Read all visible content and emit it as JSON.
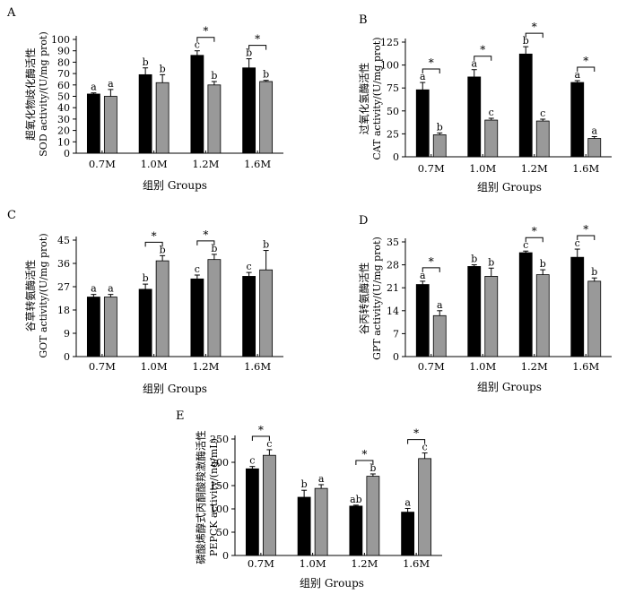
{
  "figure": {
    "x_axis_title": "组别  Groups",
    "colors": {
      "black_bar": "#000000",
      "gray_bar": "#999999"
    }
  },
  "chart_data": [
    {
      "panel": "A",
      "type": "bar",
      "ylabel_cn": "超氧化物歧化酶活性",
      "ylabel_en": "SOD activity/(U/mg prot)",
      "xlabel": "组别  Groups",
      "categories": [
        "0.7M",
        "1.0M",
        "1.2M",
        "1.6M"
      ],
      "ylim": [
        0,
        100
      ],
      "yticks": [
        0,
        10,
        20,
        30,
        40,
        50,
        60,
        70,
        80,
        90,
        100
      ],
      "series": [
        {
          "values": [
            52,
            69,
            86,
            75
          ],
          "errors": [
            1,
            6,
            4,
            8
          ],
          "letters": [
            "a",
            "b",
            "c",
            "b"
          ]
        },
        {
          "values": [
            50,
            62,
            60,
            63
          ],
          "errors": [
            6,
            7,
            3,
            1
          ],
          "letters": [
            "a",
            "b",
            "b",
            "b"
          ]
        }
      ],
      "significance": [
        {
          "category": "1.2M",
          "label": "*"
        },
        {
          "category": "1.6M",
          "label": "*"
        }
      ]
    },
    {
      "panel": "B",
      "type": "bar",
      "ylabel_cn": "过氧化氢酶活性",
      "ylabel_en": "CAT activity/(U/mg prot)",
      "xlabel": "组别  Groups",
      "categories": [
        "0.7M",
        "1.0M",
        "1.2M",
        "1.6M"
      ],
      "ylim": [
        0,
        125
      ],
      "yticks": [
        0,
        25,
        50,
        75,
        100,
        125
      ],
      "series": [
        {
          "values": [
            73,
            87,
            112,
            81
          ],
          "errors": [
            8,
            8,
            8,
            2
          ],
          "letters": [
            "a",
            "a",
            "b",
            "a"
          ]
        },
        {
          "values": [
            24,
            40,
            39,
            20
          ],
          "errors": [
            2,
            2,
            2,
            2
          ],
          "letters": [
            "b",
            "c",
            "c",
            "a"
          ]
        }
      ],
      "significance": [
        {
          "category": "0.7M",
          "label": "*"
        },
        {
          "category": "1.0M",
          "label": "*"
        },
        {
          "category": "1.2M",
          "label": "*"
        },
        {
          "category": "1.6M",
          "label": "*"
        }
      ]
    },
    {
      "panel": "C",
      "type": "bar",
      "ylabel_cn": "谷草转氨酶活性",
      "ylabel_en": "GOT activity/(U/mg prot)",
      "xlabel": "组别  Groups",
      "categories": [
        "0.7M",
        "1.0M",
        "1.2M",
        "1.6M"
      ],
      "ylim": [
        0,
        45
      ],
      "yticks": [
        0,
        9,
        18,
        27,
        36,
        45
      ],
      "series": [
        {
          "values": [
            23,
            26,
            30,
            31
          ],
          "errors": [
            1,
            2,
            1.5,
            1.5
          ],
          "letters": [
            "a",
            "b",
            "c",
            "c"
          ]
        },
        {
          "values": [
            23,
            37,
            37.5,
            33.5
          ],
          "errors": [
            1,
            2,
            2,
            7.5
          ],
          "letters": [
            "a",
            "b",
            "b",
            "b"
          ]
        }
      ],
      "significance": [
        {
          "category": "1.0M",
          "label": "*"
        },
        {
          "category": "1.2M",
          "label": "*"
        }
      ]
    },
    {
      "panel": "D",
      "type": "bar",
      "ylabel_cn": "谷丙转氨酶活性",
      "ylabel_en": "GPT activity/(U/mg prot)",
      "xlabel": "组别  Groups",
      "categories": [
        "0.7M",
        "1.0M",
        "1.2M",
        "1.6M"
      ],
      "ylim": [
        0,
        35
      ],
      "yticks": [
        0,
        7,
        14,
        21,
        28,
        35
      ],
      "series": [
        {
          "values": [
            22,
            27.5,
            31.7,
            30.3
          ],
          "errors": [
            1,
            0.5,
            0.5,
            2.5
          ],
          "letters": [
            "a",
            "b",
            "c",
            "c"
          ]
        },
        {
          "values": [
            12.5,
            24.5,
            25,
            23
          ],
          "errors": [
            1.5,
            2.5,
            1.5,
            1
          ],
          "letters": [
            "a",
            "b",
            "b",
            "b"
          ]
        }
      ],
      "significance": [
        {
          "category": "0.7M",
          "label": "*"
        },
        {
          "category": "1.2M",
          "label": "*"
        },
        {
          "category": "1.6M",
          "label": "*"
        }
      ]
    },
    {
      "panel": "E",
      "type": "bar",
      "ylabel_cn": "磷酸烯醇式丙酮酸羧激酶活性",
      "ylabel_en": "PEPCK activity/(ng/mL)",
      "xlabel": "组别  Groups",
      "categories": [
        "0.7M",
        "1.0M",
        "1.2M",
        "1.6M"
      ],
      "ylim": [
        0,
        250
      ],
      "yticks": [
        0,
        50,
        100,
        150,
        200,
        250
      ],
      "series": [
        {
          "values": [
            186,
            125,
            106,
            93
          ],
          "errors": [
            5,
            15,
            2,
            8
          ],
          "letters": [
            "c",
            "b",
            "ab",
            "a"
          ]
        },
        {
          "values": [
            215,
            144,
            170,
            208
          ],
          "errors": [
            12,
            8,
            5,
            12
          ],
          "letters": [
            "c",
            "a",
            "b",
            "c"
          ]
        }
      ],
      "significance": [
        {
          "category": "0.7M",
          "label": "*"
        },
        {
          "category": "1.2M",
          "label": "*"
        },
        {
          "category": "1.6M",
          "label": "*"
        }
      ]
    }
  ]
}
